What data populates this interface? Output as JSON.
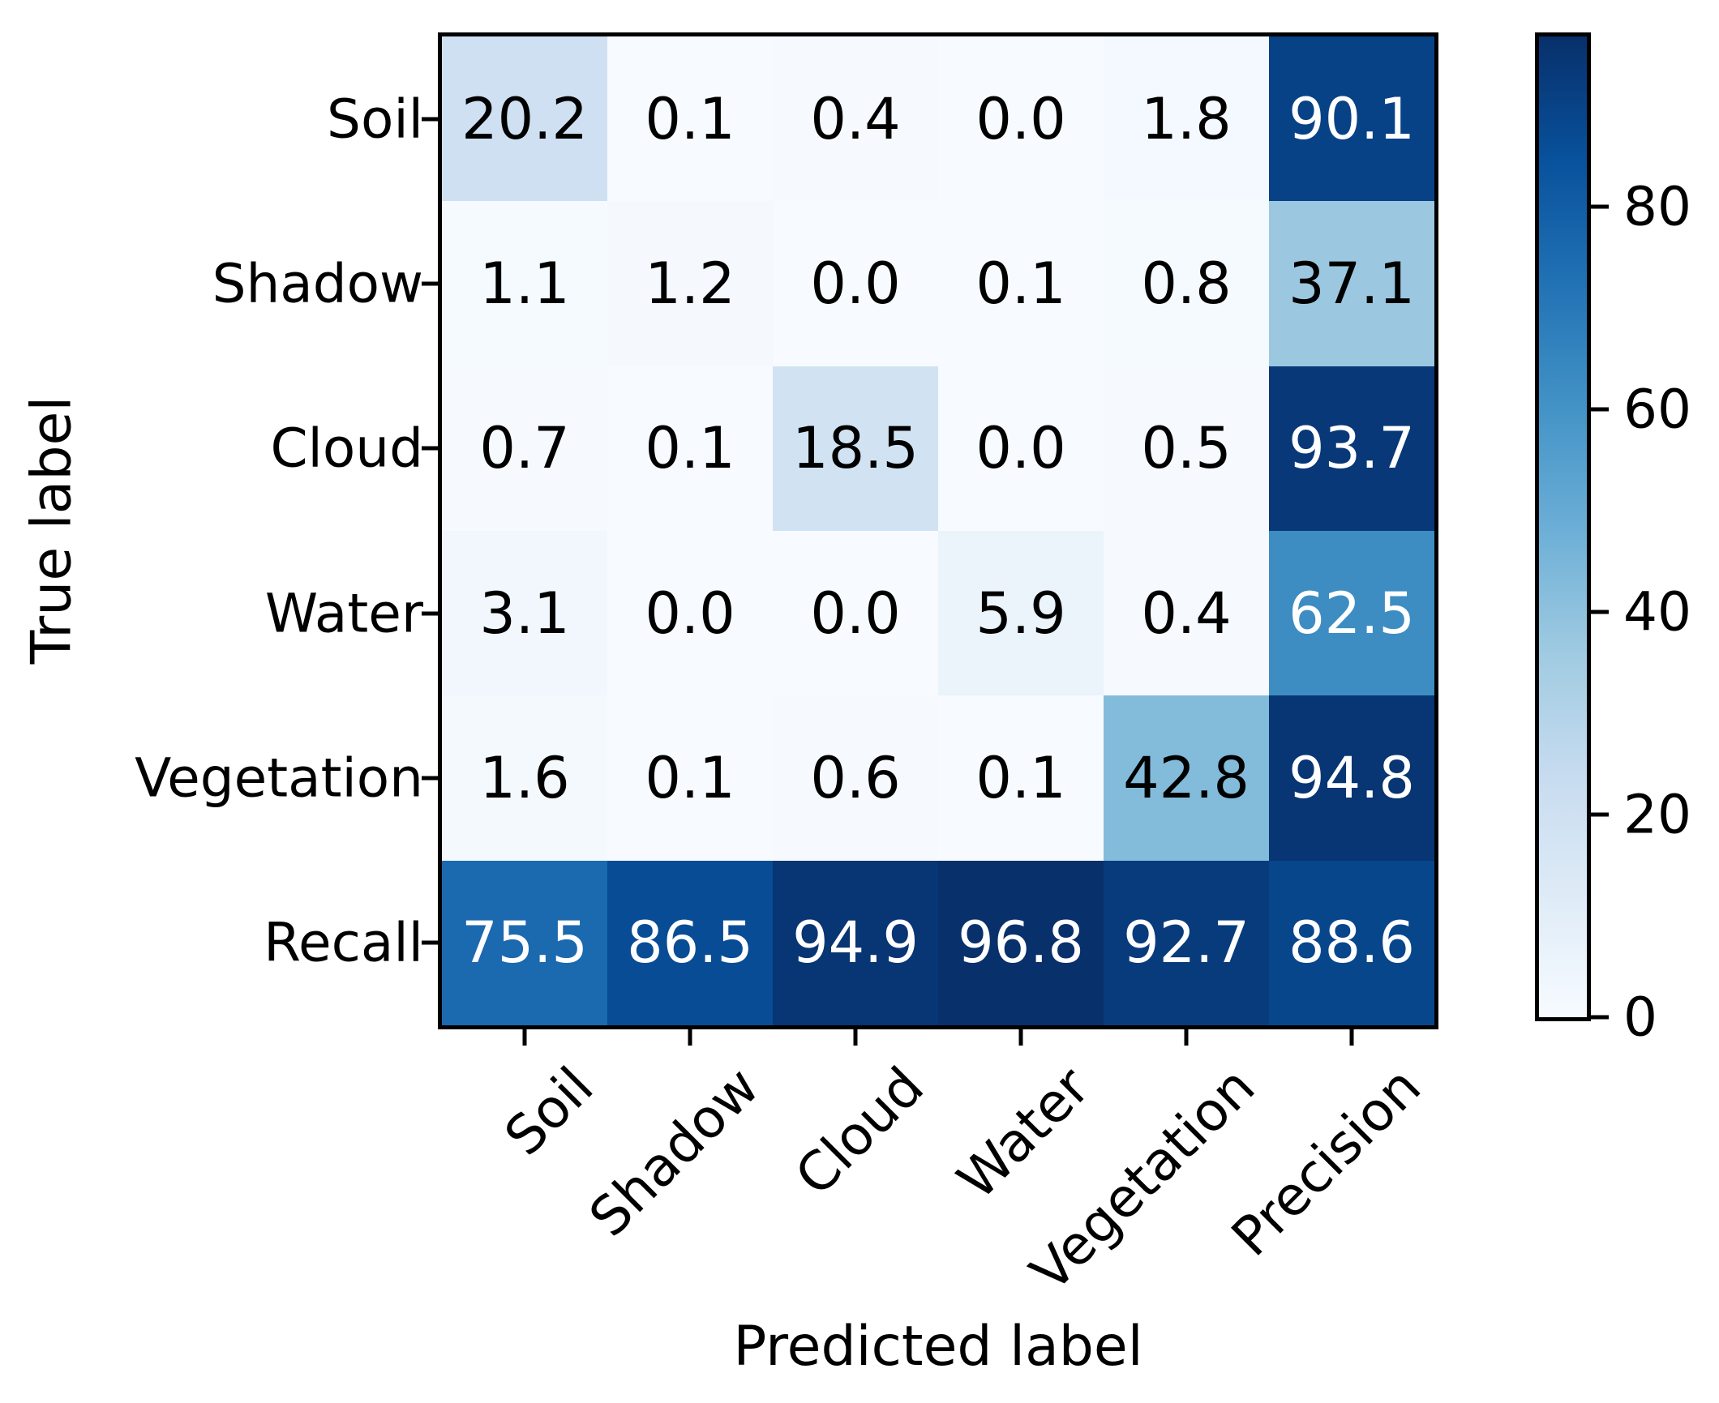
{
  "figure": {
    "background_color": "#ffffff",
    "frame_color": "#000000"
  },
  "chart_data": {
    "type": "heatmap",
    "title": "",
    "xlabel": "Predicted label",
    "ylabel": "True label",
    "x_tick_labels": [
      "Soil",
      "Shadow",
      "Cloud",
      "Water",
      "Vegetation",
      "Precision"
    ],
    "y_tick_labels": [
      "Soil",
      "Shadow",
      "Cloud",
      "Water",
      "Vegetation",
      "Recall"
    ],
    "values": [
      [
        20.2,
        0.1,
        0.4,
        0.0,
        1.8,
        90.1
      ],
      [
        1.1,
        1.2,
        0.0,
        0.1,
        0.8,
        37.1
      ],
      [
        0.7,
        0.1,
        18.5,
        0.0,
        0.5,
        93.7
      ],
      [
        3.1,
        0.0,
        0.0,
        5.9,
        0.4,
        62.5
      ],
      [
        1.6,
        0.1,
        0.6,
        0.1,
        42.8,
        94.8
      ],
      [
        75.5,
        86.5,
        94.9,
        96.8,
        92.7,
        88.6
      ]
    ],
    "cell_text_decimals": 1,
    "vmin": 0,
    "vmax": 96.8,
    "colormap_name": "Blues",
    "colormap_stops": [
      "#f7fbff",
      "#deebf7",
      "#c6dbef",
      "#9ecae1",
      "#6baed6",
      "#4292c6",
      "#2171b5",
      "#08519c",
      "#08306b"
    ],
    "cell_text_color_low": "#000000",
    "cell_text_color_high": "#ffffff",
    "grid": false,
    "legend_position": "none",
    "colorbar": {
      "side": "right",
      "ticks": [
        0,
        20,
        40,
        60,
        80
      ]
    }
  }
}
